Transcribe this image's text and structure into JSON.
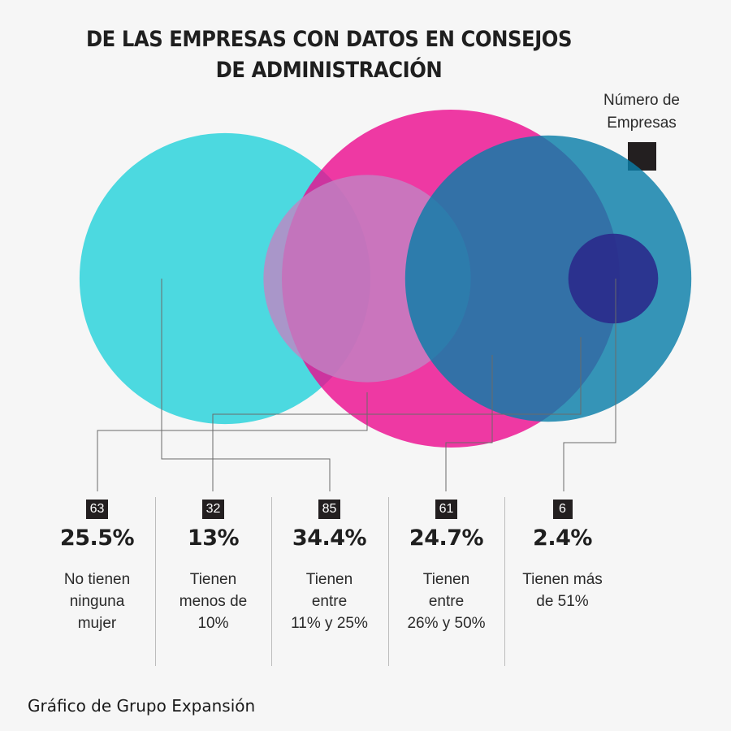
{
  "chart_data": {
    "type": "bubble",
    "title_lines": [
      "DE LAS EMPRESAS CON DATOS EN CONSEJOS",
      "DE ADMINISTRACIÓN"
    ],
    "legend": {
      "label_lines": [
        "Número de",
        "Empresas"
      ],
      "color": "#231f20"
    },
    "series": [
      {
        "count": "63",
        "percent": "25.5%",
        "value": 63,
        "desc_lines": [
          "No tienen",
          "ninguna",
          "mujer"
        ],
        "color": "#3dd6dd"
      },
      {
        "count": "32",
        "percent": "13%",
        "value": 32,
        "desc_lines": [
          "Tienen",
          "menos de",
          "10%"
        ],
        "color": "#c084c3"
      },
      {
        "count": "85",
        "percent": "34.4%",
        "value": 85,
        "desc_lines": [
          "Tienen",
          "entre",
          "11% y 25%"
        ],
        "color": "#ec0a8f"
      },
      {
        "count": "61",
        "percent": "24.7%",
        "value": 61,
        "desc_lines": [
          "Tienen",
          "entre",
          "26% y 50%"
        ],
        "color": "#0a7ea8"
      },
      {
        "count": "6",
        "percent": "2.4%",
        "value": 6,
        "desc_lines": [
          "Tienen más",
          "de 51%"
        ],
        "color": "#2a2a8c"
      }
    ]
  },
  "credit": "Gráfico de Grupo Expansión"
}
